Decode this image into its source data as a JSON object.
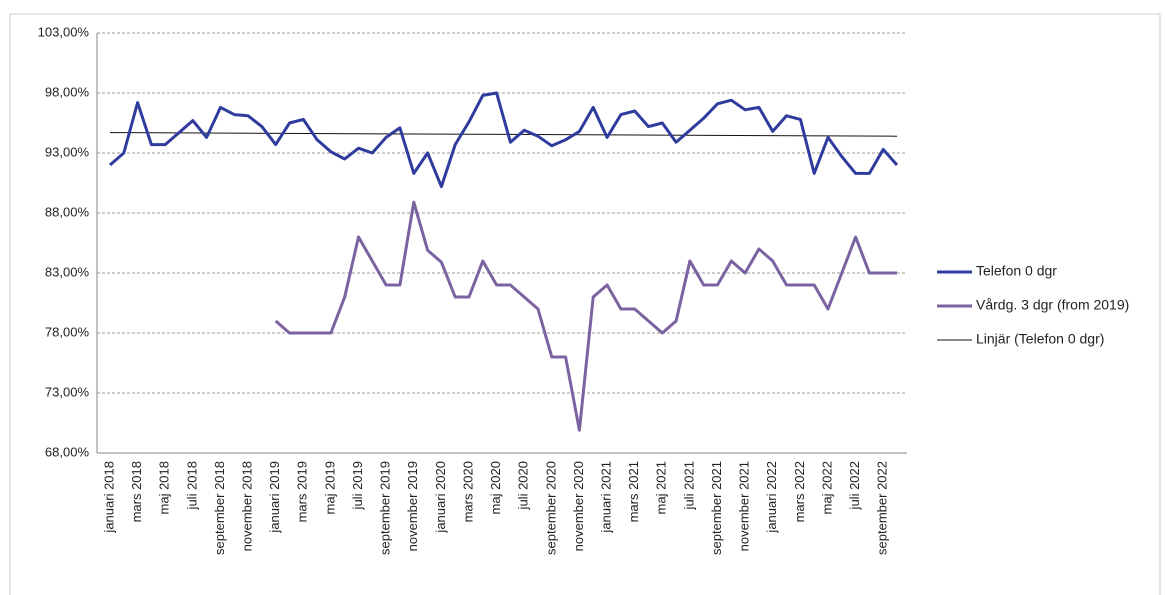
{
  "chart_data": {
    "type": "line",
    "categories": [
      "januari 2018",
      null,
      "mars 2018",
      null,
      "maj 2018",
      null,
      "juli 2018",
      null,
      "september 2018",
      null,
      "november 2018",
      null,
      "januari 2019",
      null,
      "mars 2019",
      null,
      "maj 2019",
      null,
      "juli 2019",
      null,
      "september 2019",
      null,
      "november 2019",
      null,
      "januari 2020",
      null,
      "mars 2020",
      null,
      "maj 2020",
      null,
      "juli 2020",
      null,
      "september 2020",
      null,
      "november 2020",
      null,
      "januari 2021",
      null,
      "mars 2021",
      null,
      "maj 2021",
      null,
      "juli 2021",
      null,
      "september 2021",
      null,
      "november 2021",
      null,
      "januari 2022",
      null,
      "mars 2022",
      null,
      "maj 2022",
      null,
      "juli 2022",
      null,
      "september 2022",
      null
    ],
    "series": [
      {
        "name": "Telefon 0 dgr",
        "color": "#2f3c9e",
        "values": [
          92.0,
          93.0,
          97.2,
          93.7,
          93.7,
          94.7,
          95.7,
          94.3,
          96.8,
          96.2,
          96.1,
          95.2,
          93.7,
          95.5,
          95.8,
          94.1,
          93.1,
          92.5,
          93.4,
          93.0,
          94.3,
          95.1,
          91.3,
          93.0,
          90.2,
          93.7,
          95.6,
          97.8,
          98.0,
          93.9,
          94.9,
          94.4,
          93.6,
          94.1,
          94.8,
          96.8,
          94.3,
          96.2,
          96.5,
          95.2,
          95.5,
          93.9,
          94.9,
          95.9,
          97.1,
          97.4,
          96.6,
          96.8,
          94.8,
          96.1,
          95.8,
          91.3,
          94.3,
          92.7,
          91.3,
          91.3,
          93.3,
          92.0
        ]
      },
      {
        "name": "Vårdg. 3 dgr (from 2019)",
        "color": "#7b62a0",
        "values": [
          null,
          null,
          null,
          null,
          null,
          null,
          null,
          null,
          null,
          null,
          null,
          null,
          79.0,
          78.0,
          78.0,
          78.0,
          78.0,
          81.0,
          86.0,
          84.0,
          82.0,
          82.0,
          88.9,
          84.9,
          83.9,
          81.0,
          81.0,
          84.0,
          82.0,
          82.0,
          81.0,
          80.0,
          76.0,
          76.0,
          69.9,
          81.0,
          82.0,
          80.0,
          80.0,
          79.0,
          78.0,
          79.0,
          84.0,
          82.0,
          82.0,
          84.0,
          83.0,
          85.0,
          84.0,
          82.0,
          82.0,
          82.0,
          80.0,
          83.0,
          86.0,
          83.0,
          83.0,
          83.0
        ]
      }
    ],
    "trendline": {
      "name": "Linjär (Telefon 0 dgr)",
      "color": "#111111",
      "values": [
        94.7,
        94.4
      ]
    },
    "ylim": [
      68,
      103
    ],
    "yticks": [
      {
        "value": 68,
        "label": "68,00%"
      },
      {
        "value": 73,
        "label": "73,00%"
      },
      {
        "value": 78,
        "label": "78,00%"
      },
      {
        "value": 83,
        "label": "83,00%"
      },
      {
        "value": 88,
        "label": "88,00%"
      },
      {
        "value": 93,
        "label": "93,00%"
      },
      {
        "value": 98,
        "label": "98,00%"
      },
      {
        "value": 103,
        "label": "103,00%"
      }
    ],
    "grid": true,
    "legend": "right"
  }
}
